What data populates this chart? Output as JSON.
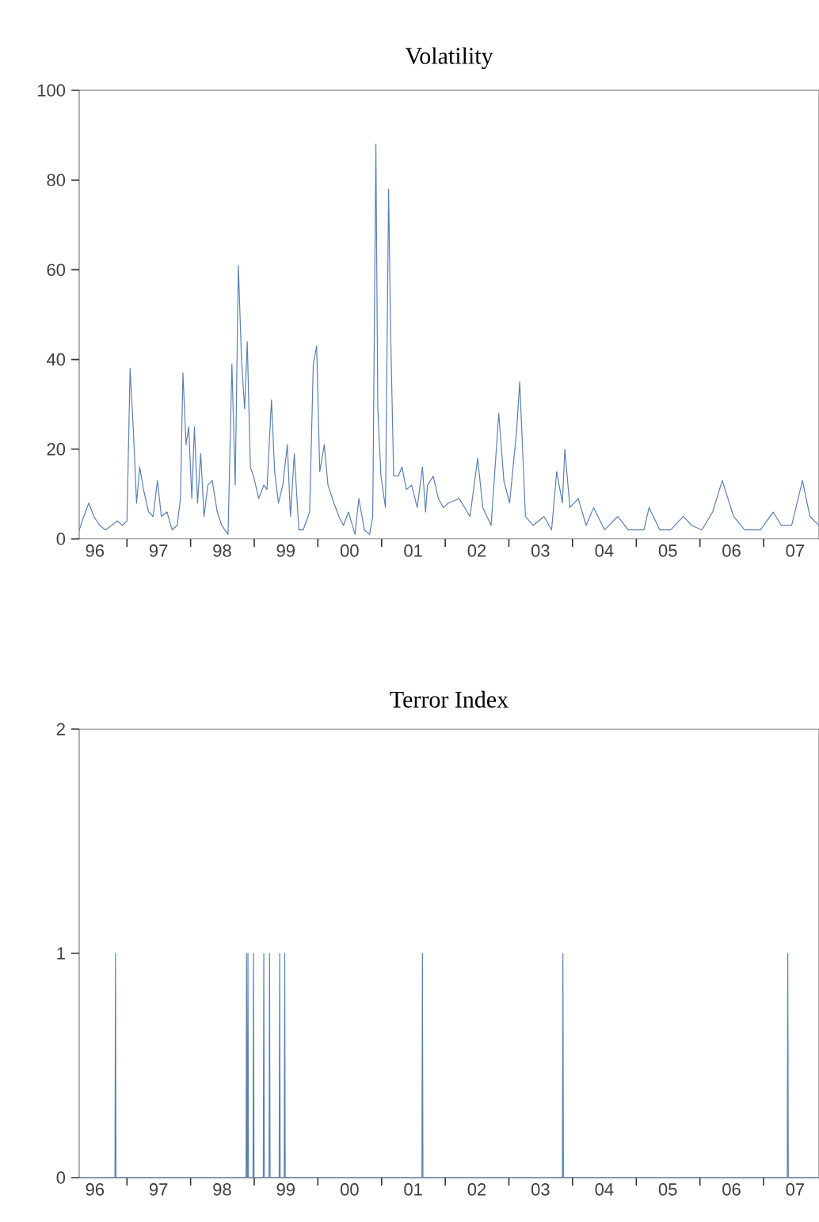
{
  "chart_data": [
    {
      "type": "line",
      "title": "Volatility",
      "color": "#5b80b4",
      "x": [
        "1996-04-02",
        "1996-04-28",
        "1996-05-27",
        "1996-06-25",
        "1996-07-28",
        "1996-08-30",
        "1996-10-05",
        "1996-11-07",
        "1996-12-06",
        "1997-01-01",
        "1997-01-19",
        "1997-02-07",
        "1997-02-25",
        "1997-03-15",
        "1997-04-06",
        "1997-05-05",
        "1997-05-31",
        "1997-06-25",
        "1997-07-17",
        "1997-08-19",
        "1997-09-17",
        "1997-10-16",
        "1997-11-04",
        "1997-11-18",
        "1997-12-06",
        "1997-12-21",
        "1998-01-08",
        "1998-01-23",
        "1998-02-10",
        "1998-02-28",
        "1998-03-19",
        "1998-04-10",
        "1998-05-05",
        "1998-06-03",
        "1998-06-29",
        "1998-08-04",
        "1998-08-26",
        "1998-09-14",
        "1998-10-02",
        "1998-10-20",
        "1998-11-07",
        "1998-11-22",
        "1998-12-10",
        "1998-12-28",
        "1999-01-27",
        "1999-02-25",
        "1999-03-15",
        "1999-04-10",
        "1999-04-28",
        "1999-05-20",
        "1999-06-14",
        "1999-07-10",
        "1999-07-28",
        "1999-08-19",
        "1999-09-14",
        "1999-10-09",
        "1999-11-15",
        "1999-12-06",
        "1999-12-25",
        "2000-01-12",
        "2000-02-07",
        "2000-02-28",
        "2000-04-02",
        "2000-05-01",
        "2000-05-27",
        "2000-06-25",
        "2000-08-01",
        "2000-08-23",
        "2000-09-24",
        "2000-10-24",
        "2000-11-11",
        "2000-11-29",
        "2000-12-10",
        "2000-12-28",
        "2001-01-23",
        "2001-02-10",
        "2001-02-21",
        "2001-03-11",
        "2001-04-06",
        "2001-04-28",
        "2001-05-23",
        "2001-06-22",
        "2001-07-24",
        "2001-08-23",
        "2001-09-10",
        "2001-09-21",
        "2001-10-24",
        "2001-11-22",
        "2001-12-21",
        "2002-01-19",
        "2002-03-22",
        "2002-05-23",
        "2002-07-06",
        "2002-08-04",
        "2002-09-21",
        "2002-11-04",
        "2002-12-03",
        "2003-01-05",
        "2003-02-14",
        "2003-03-04",
        "2003-04-06",
        "2003-05-20",
        "2003-07-21",
        "2003-09-03",
        "2003-10-02",
        "2003-11-04",
        "2003-11-18",
        "2003-12-17",
        "2004-02-03",
        "2004-03-19",
        "2004-05-01",
        "2004-07-03",
        "2004-09-17",
        "2004-11-15",
        "2005-02-14",
        "2005-03-15",
        "2005-05-16",
        "2005-07-17",
        "2005-09-28",
        "2005-11-15",
        "2006-01-12",
        "2006-03-15",
        "2006-05-09",
        "2006-07-13",
        "2006-09-14",
        "2006-12-14",
        "2007-02-25",
        "2007-04-13",
        "2007-06-11",
        "2007-08-12",
        "2007-09-24",
        "2007-11-15"
      ],
      "values": [
        2,
        5,
        8,
        5,
        3,
        2,
        3,
        4,
        3,
        4,
        38,
        24,
        8,
        16,
        11,
        6,
        5,
        13,
        5,
        6,
        2,
        3,
        9,
        37,
        21,
        25,
        9,
        25,
        8,
        19,
        5,
        12,
        13,
        6,
        3,
        1,
        39,
        12,
        61,
        40,
        29,
        44,
        16,
        14,
        9,
        12,
        11,
        31,
        15,
        8,
        12,
        21,
        5,
        19,
        2,
        2,
        6,
        39,
        43,
        15,
        21,
        12,
        8,
        5,
        3,
        6,
        1,
        9,
        2,
        1,
        5,
        88,
        29,
        14,
        7,
        78,
        47,
        14,
        14,
        16,
        11,
        12,
        7,
        16,
        6,
        12,
        14,
        9,
        7,
        8,
        9,
        5,
        18,
        7,
        3,
        28,
        13,
        8,
        24,
        35,
        5,
        3,
        5,
        2,
        15,
        8,
        20,
        7,
        9,
        3,
        7,
        2,
        5,
        2,
        2,
        7,
        2,
        2,
        5,
        3,
        2,
        6,
        13,
        5,
        2,
        2,
        6,
        3,
        3,
        13,
        5,
        3
      ],
      "xlim": [
        "1996-04-02",
        "2007-11-15"
      ],
      "ylim": [
        0,
        100
      ],
      "yticks": [
        0,
        20,
        40,
        60,
        80,
        100
      ],
      "xticks": [
        {
          "value": "1997-01-01",
          "label": null
        },
        {
          "value": "1998-01-01",
          "label": null
        },
        {
          "value": "1999-01-01",
          "label": null
        },
        {
          "value": "2000-01-01",
          "label": null
        },
        {
          "value": "2001-01-01",
          "label": null
        },
        {
          "value": "2002-01-01",
          "label": null
        },
        {
          "value": "2003-01-01",
          "label": null
        },
        {
          "value": "2004-01-01",
          "label": null
        },
        {
          "value": "2005-01-01",
          "label": null
        },
        {
          "value": "2006-01-01",
          "label": null
        },
        {
          "value": "2007-01-01",
          "label": null
        },
        {
          "value": "1996-07-01",
          "label": "96"
        },
        {
          "value": "1997-07-01",
          "label": "97"
        },
        {
          "value": "1998-07-01",
          "label": "98"
        },
        {
          "value": "1999-07-01",
          "label": "99"
        },
        {
          "value": "2000-07-01",
          "label": "00"
        },
        {
          "value": "2001-07-01",
          "label": "01"
        },
        {
          "value": "2002-07-01",
          "label": "02"
        },
        {
          "value": "2003-07-01",
          "label": "03"
        },
        {
          "value": "2004-07-01",
          "label": "04"
        },
        {
          "value": "2005-07-01",
          "label": "05"
        },
        {
          "value": "2006-07-01",
          "label": "06"
        },
        {
          "value": "2007-07-01",
          "label": "07"
        }
      ]
    },
    {
      "type": "line",
      "title": "Terror Index",
      "color": "#5b80b4",
      "x": [
        "1996-04-02",
        "1996-10-24",
        "1996-10-27",
        "1996-10-30",
        "1998-11-15",
        "1998-11-18",
        "1998-11-21",
        "1998-11-23",
        "1998-11-26",
        "1998-11-29",
        "1998-12-25",
        "1998-12-28",
        "1998-12-31",
        "1999-02-22",
        "1999-02-25",
        "1999-02-28",
        "1999-03-27",
        "1999-03-30",
        "1999-04-02",
        "1999-05-24",
        "1999-05-27",
        "1999-05-30",
        "1999-06-22",
        "1999-06-25",
        "1999-06-28",
        "2001-08-20",
        "2001-08-23",
        "2001-08-26",
        "2003-11-04",
        "2003-11-07",
        "2003-11-10",
        "2007-05-17",
        "2007-05-20",
        "2007-05-23",
        "2007-11-15"
      ],
      "values": [
        0,
        0,
        1,
        0,
        0,
        1,
        0,
        0,
        1,
        0,
        0,
        1,
        0,
        0,
        1,
        0,
        0,
        1,
        0,
        0,
        1,
        0,
        0,
        1,
        0,
        0,
        1,
        0,
        0,
        1,
        0,
        0,
        1,
        0,
        0
      ],
      "xlim": [
        "1996-04-02",
        "2007-11-15"
      ],
      "ylim": [
        0,
        2
      ],
      "yticks": [
        0,
        1,
        2
      ],
      "xticks": [
        {
          "value": "1997-01-01",
          "label": null
        },
        {
          "value": "1998-01-01",
          "label": null
        },
        {
          "value": "1999-01-01",
          "label": null
        },
        {
          "value": "2000-01-01",
          "label": null
        },
        {
          "value": "2001-01-01",
          "label": null
        },
        {
          "value": "2002-01-01",
          "label": null
        },
        {
          "value": "2003-01-01",
          "label": null
        },
        {
          "value": "2004-01-01",
          "label": null
        },
        {
          "value": "2005-01-01",
          "label": null
        },
        {
          "value": "2006-01-01",
          "label": null
        },
        {
          "value": "2007-01-01",
          "label": null
        },
        {
          "value": "1996-07-01",
          "label": "96"
        },
        {
          "value": "1997-07-01",
          "label": "97"
        },
        {
          "value": "1998-07-01",
          "label": "98"
        },
        {
          "value": "1999-07-01",
          "label": "99"
        },
        {
          "value": "2000-07-01",
          "label": "00"
        },
        {
          "value": "2001-07-01",
          "label": "01"
        },
        {
          "value": "2002-07-01",
          "label": "02"
        },
        {
          "value": "2003-07-01",
          "label": "03"
        },
        {
          "value": "2004-07-01",
          "label": "04"
        },
        {
          "value": "2005-07-01",
          "label": "05"
        },
        {
          "value": "2006-07-01",
          "label": "06"
        },
        {
          "value": "2007-07-01",
          "label": "07"
        }
      ]
    }
  ]
}
